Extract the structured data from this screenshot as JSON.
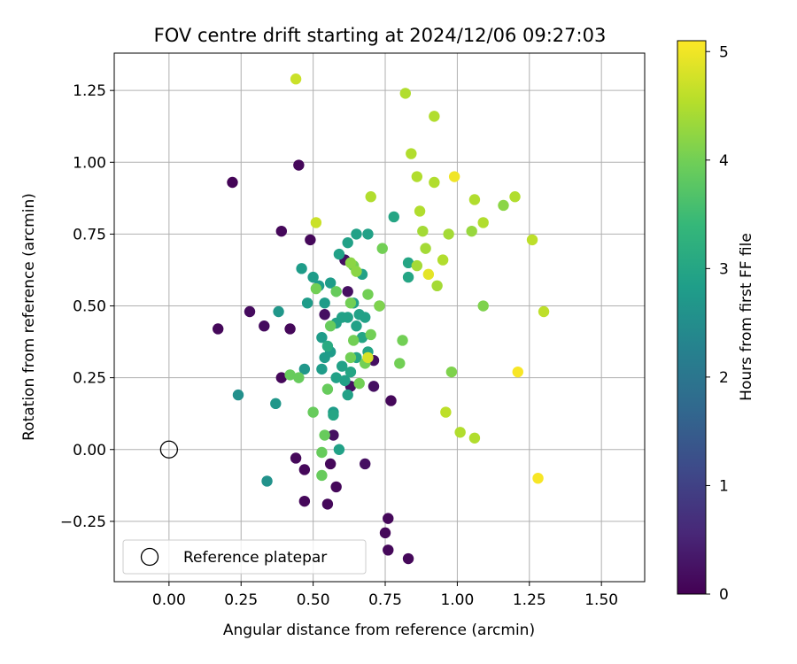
{
  "chart_data": {
    "type": "scatter",
    "title": "FOV centre drift starting at 2024/12/06 09:27:03",
    "xlabel": "Angular distance from reference (arcmin)",
    "ylabel": "Rotation from reference (arcmin)",
    "xlim": [
      -0.19,
      1.65
    ],
    "ylim": [
      -0.46,
      1.38
    ],
    "xticks": [
      0.0,
      0.25,
      0.5,
      0.75,
      1.0,
      1.25,
      1.5
    ],
    "xtick_labels": [
      "0.00",
      "0.25",
      "0.50",
      "0.75",
      "1.00",
      "1.25",
      "1.50"
    ],
    "yticks": [
      -0.25,
      0.0,
      0.25,
      0.5,
      0.75,
      1.0,
      1.25
    ],
    "ytick_labels": [
      "−0.25",
      "0.00",
      "0.25",
      "0.50",
      "0.75",
      "1.00",
      "1.25"
    ],
    "grid": true,
    "legend": {
      "position": "lower-left",
      "entries": [
        {
          "label": "Reference platepar",
          "marker": "open-circle"
        }
      ]
    },
    "reference_point": {
      "x": 0.0,
      "y": 0.0
    },
    "colorbar": {
      "label": "Hours from first FF file",
      "colormap": "viridis",
      "range": [
        0,
        5.1
      ],
      "ticks": [
        0,
        1,
        2,
        3,
        4,
        5
      ],
      "tick_labels": [
        "0",
        "1",
        "2",
        "3",
        "4",
        "5"
      ],
      "colors": [
        "#440154",
        "#482878",
        "#3e4989",
        "#31688e",
        "#26828e",
        "#1f9e89",
        "#35b779",
        "#6ece58",
        "#b5de2b",
        "#fde725"
      ]
    },
    "points": [
      {
        "x": 0.22,
        "y": 0.93,
        "h": 0.05
      },
      {
        "x": 0.45,
        "y": 0.99,
        "h": 0.1
      },
      {
        "x": 0.39,
        "y": 0.76,
        "h": 0.1
      },
      {
        "x": 0.49,
        "y": 0.73,
        "h": 0.1
      },
      {
        "x": 0.17,
        "y": 0.42,
        "h": 0.1
      },
      {
        "x": 0.28,
        "y": 0.48,
        "h": 0.15
      },
      {
        "x": 0.33,
        "y": 0.43,
        "h": 0.15
      },
      {
        "x": 0.42,
        "y": 0.42,
        "h": 0.1
      },
      {
        "x": 0.39,
        "y": 0.25,
        "h": 0.1
      },
      {
        "x": 0.54,
        "y": 0.47,
        "h": 0.2
      },
      {
        "x": 0.62,
        "y": 0.55,
        "h": 0.2
      },
      {
        "x": 0.61,
        "y": 0.66,
        "h": 0.2
      },
      {
        "x": 0.71,
        "y": 0.31,
        "h": 0.2
      },
      {
        "x": 0.71,
        "y": 0.22,
        "h": 0.2
      },
      {
        "x": 0.77,
        "y": 0.17,
        "h": 0.1
      },
      {
        "x": 0.63,
        "y": 0.22,
        "h": 0.2
      },
      {
        "x": 0.57,
        "y": 0.05,
        "h": 0.2
      },
      {
        "x": 0.44,
        "y": -0.03,
        "h": 0.1
      },
      {
        "x": 0.47,
        "y": -0.07,
        "h": 0.1
      },
      {
        "x": 0.56,
        "y": -0.05,
        "h": 0.1
      },
      {
        "x": 0.58,
        "y": -0.13,
        "h": 0.1
      },
      {
        "x": 0.47,
        "y": -0.18,
        "h": 0.1
      },
      {
        "x": 0.55,
        "y": -0.19,
        "h": 0.1
      },
      {
        "x": 0.76,
        "y": -0.24,
        "h": 0.1
      },
      {
        "x": 0.75,
        "y": -0.29,
        "h": 0.1
      },
      {
        "x": 0.76,
        "y": -0.35,
        "h": 0.1
      },
      {
        "x": 0.83,
        "y": -0.38,
        "h": 0.1
      },
      {
        "x": 0.68,
        "y": -0.05,
        "h": 0.2
      },
      {
        "x": 0.24,
        "y": 0.19,
        "h": 2.55
      },
      {
        "x": 0.34,
        "y": -0.11,
        "h": 2.6
      },
      {
        "x": 0.37,
        "y": 0.16,
        "h": 2.7
      },
      {
        "x": 0.38,
        "y": 0.48,
        "h": 2.7
      },
      {
        "x": 0.47,
        "y": 0.28,
        "h": 2.7
      },
      {
        "x": 0.46,
        "y": 0.63,
        "h": 2.8
      },
      {
        "x": 0.48,
        "y": 0.51,
        "h": 2.8
      },
      {
        "x": 0.5,
        "y": 0.6,
        "h": 2.8
      },
      {
        "x": 0.52,
        "y": 0.57,
        "h": 2.8
      },
      {
        "x": 0.54,
        "y": 0.51,
        "h": 2.8
      },
      {
        "x": 0.56,
        "y": 0.58,
        "h": 2.8
      },
      {
        "x": 0.53,
        "y": 0.39,
        "h": 2.8
      },
      {
        "x": 0.54,
        "y": 0.32,
        "h": 2.8
      },
      {
        "x": 0.53,
        "y": 0.28,
        "h": 2.8
      },
      {
        "x": 0.56,
        "y": 0.34,
        "h": 2.8
      },
      {
        "x": 0.57,
        "y": 0.13,
        "h": 2.8
      },
      {
        "x": 0.59,
        "y": 0.0,
        "h": 2.9
      },
      {
        "x": 0.58,
        "y": 0.44,
        "h": 2.9
      },
      {
        "x": 0.6,
        "y": 0.46,
        "h": 2.9
      },
      {
        "x": 0.62,
        "y": 0.46,
        "h": 2.9
      },
      {
        "x": 0.59,
        "y": 0.68,
        "h": 2.9
      },
      {
        "x": 0.62,
        "y": 0.72,
        "h": 2.9
      },
      {
        "x": 0.65,
        "y": 0.75,
        "h": 2.9
      },
      {
        "x": 0.69,
        "y": 0.75,
        "h": 2.9
      },
      {
        "x": 0.67,
        "y": 0.61,
        "h": 2.9
      },
      {
        "x": 0.64,
        "y": 0.51,
        "h": 2.9
      },
      {
        "x": 0.66,
        "y": 0.47,
        "h": 2.9
      },
      {
        "x": 0.68,
        "y": 0.46,
        "h": 2.9
      },
      {
        "x": 0.65,
        "y": 0.43,
        "h": 2.9
      },
      {
        "x": 0.6,
        "y": 0.29,
        "h": 2.9
      },
      {
        "x": 0.61,
        "y": 0.24,
        "h": 2.9
      },
      {
        "x": 0.62,
        "y": 0.19,
        "h": 2.9
      },
      {
        "x": 0.58,
        "y": 0.25,
        "h": 2.9
      },
      {
        "x": 0.63,
        "y": 0.27,
        "h": 3.0
      },
      {
        "x": 0.65,
        "y": 0.32,
        "h": 3.0
      },
      {
        "x": 0.67,
        "y": 0.39,
        "h": 3.0
      },
      {
        "x": 0.69,
        "y": 0.34,
        "h": 3.0
      },
      {
        "x": 0.73,
        "y": 0.5,
        "h": 3.0
      },
      {
        "x": 0.78,
        "y": 0.81,
        "h": 3.0
      },
      {
        "x": 0.83,
        "y": 0.65,
        "h": 3.0
      },
      {
        "x": 0.83,
        "y": 0.6,
        "h": 3.0
      },
      {
        "x": 0.57,
        "y": 0.12,
        "h": 3.0
      },
      {
        "x": 0.55,
        "y": 0.36,
        "h": 3.1
      },
      {
        "x": 0.42,
        "y": 0.26,
        "h": 3.9
      },
      {
        "x": 0.45,
        "y": 0.25,
        "h": 3.9
      },
      {
        "x": 0.5,
        "y": 0.13,
        "h": 3.9
      },
      {
        "x": 0.53,
        "y": -0.01,
        "h": 3.9
      },
      {
        "x": 0.53,
        "y": -0.09,
        "h": 3.9
      },
      {
        "x": 0.54,
        "y": 0.05,
        "h": 3.9
      },
      {
        "x": 0.55,
        "y": 0.21,
        "h": 3.9
      },
      {
        "x": 0.56,
        "y": 0.43,
        "h": 3.9
      },
      {
        "x": 0.58,
        "y": 0.55,
        "h": 3.9
      },
      {
        "x": 0.51,
        "y": 0.56,
        "h": 4.0
      },
      {
        "x": 0.63,
        "y": 0.51,
        "h": 4.0
      },
      {
        "x": 0.63,
        "y": 0.32,
        "h": 4.0
      },
      {
        "x": 0.64,
        "y": 0.38,
        "h": 4.0
      },
      {
        "x": 0.66,
        "y": 0.23,
        "h": 4.0
      },
      {
        "x": 0.68,
        "y": 0.3,
        "h": 4.0
      },
      {
        "x": 0.69,
        "y": 0.54,
        "h": 4.0
      },
      {
        "x": 0.7,
        "y": 0.4,
        "h": 4.0
      },
      {
        "x": 0.74,
        "y": 0.7,
        "h": 4.0
      },
      {
        "x": 0.8,
        "y": 0.3,
        "h": 4.0
      },
      {
        "x": 0.81,
        "y": 0.38,
        "h": 4.0
      },
      {
        "x": 0.64,
        "y": 0.64,
        "h": 4.0
      },
      {
        "x": 0.73,
        "y": 0.5,
        "h": 4.1
      },
      {
        "x": 1.09,
        "y": 0.5,
        "h": 4.1
      },
      {
        "x": 0.98,
        "y": 0.27,
        "h": 4.1
      },
      {
        "x": 0.63,
        "y": 0.65,
        "h": 4.2
      },
      {
        "x": 0.65,
        "y": 0.62,
        "h": 4.2
      },
      {
        "x": 1.16,
        "y": 0.85,
        "h": 4.2
      },
      {
        "x": 1.05,
        "y": 0.76,
        "h": 4.3
      },
      {
        "x": 0.88,
        "y": 0.76,
        "h": 4.4
      },
      {
        "x": 0.89,
        "y": 0.7,
        "h": 4.4
      },
      {
        "x": 0.93,
        "y": 0.57,
        "h": 4.4
      },
      {
        "x": 0.86,
        "y": 0.64,
        "h": 4.4
      },
      {
        "x": 0.97,
        "y": 0.75,
        "h": 4.4
      },
      {
        "x": 0.82,
        "y": 1.24,
        "h": 4.5
      },
      {
        "x": 0.92,
        "y": 1.16,
        "h": 4.5
      },
      {
        "x": 0.84,
        "y": 1.03,
        "h": 4.5
      },
      {
        "x": 0.86,
        "y": 0.95,
        "h": 4.5
      },
      {
        "x": 0.92,
        "y": 0.93,
        "h": 4.5
      },
      {
        "x": 0.87,
        "y": 0.83,
        "h": 4.5
      },
      {
        "x": 0.7,
        "y": 0.88,
        "h": 4.5
      },
      {
        "x": 0.95,
        "y": 0.66,
        "h": 4.5
      },
      {
        "x": 1.06,
        "y": 0.87,
        "h": 4.5
      },
      {
        "x": 1.09,
        "y": 0.79,
        "h": 4.5
      },
      {
        "x": 1.2,
        "y": 0.88,
        "h": 4.5
      },
      {
        "x": 1.01,
        "y": 0.06,
        "h": 4.5
      },
      {
        "x": 1.06,
        "y": 0.04,
        "h": 4.5
      },
      {
        "x": 0.96,
        "y": 0.13,
        "h": 4.6
      },
      {
        "x": 1.26,
        "y": 0.73,
        "h": 4.6
      },
      {
        "x": 1.3,
        "y": 0.48,
        "h": 4.6
      },
      {
        "x": 0.44,
        "y": 1.29,
        "h": 4.7
      },
      {
        "x": 0.51,
        "y": 0.79,
        "h": 4.7
      },
      {
        "x": 0.69,
        "y": 0.32,
        "h": 4.8
      },
      {
        "x": 0.9,
        "y": 0.61,
        "h": 4.9
      },
      {
        "x": 0.99,
        "y": 0.95,
        "h": 5.0
      },
      {
        "x": 1.21,
        "y": 0.27,
        "h": 5.05
      },
      {
        "x": 1.28,
        "y": -0.1,
        "h": 5.05
      }
    ]
  }
}
